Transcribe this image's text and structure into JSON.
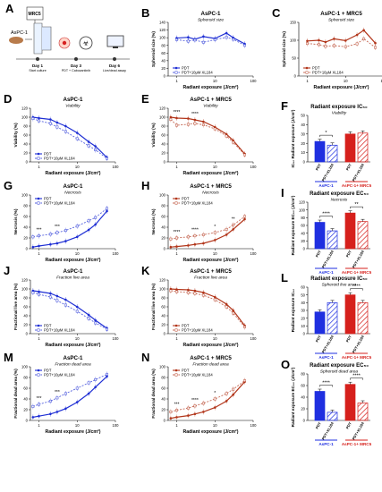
{
  "figure": {
    "panelA": {
      "letter": "A",
      "cells_label": "AsPC-1",
      "mrc5_label": "MRC5",
      "steps": [
        {
          "day": "Day 1",
          "note": "Start culture"
        },
        {
          "day": "Day 3",
          "note": "PDT + Cabozantinib"
        },
        {
          "day": "Day 6",
          "note": "Live/dead assay"
        }
      ]
    }
  },
  "colors": {
    "blue": "#1f2fd4",
    "red": "#b2361b",
    "bar_blue": "#1f2fe0",
    "bar_red": "#d6201c"
  },
  "chart_data": [
    {
      "id": "B",
      "type": "line",
      "title": "AsPC-1",
      "subtitle": "Spheroid size",
      "xlabel": "Radiant exposure (J/cm²)",
      "ylabel": "Spheroid size (%)",
      "xscale": "log",
      "xlim": [
        0.6,
        100
      ],
      "ylim": [
        0,
        140
      ],
      "yticks": [
        0,
        20,
        40,
        60,
        80,
        100,
        120,
        140
      ],
      "xticks": [
        1,
        10,
        100
      ],
      "color": "#1f2fd4",
      "legend_position": "bottom-left",
      "series": [
        {
          "name": "PDT",
          "style": "solid",
          "x": [
            1,
            2,
            3,
            5,
            10,
            20,
            30,
            60
          ],
          "y": [
            99,
            101,
            96,
            103,
            98,
            112,
            100,
            84
          ]
        },
        {
          "name": "PDT+10μM XL184",
          "style": "dashed",
          "x": [
            1,
            2,
            3,
            5,
            10,
            20,
            30,
            60
          ],
          "y": [
            95,
            91,
            94,
            88,
            95,
            101,
            96,
            80
          ]
        }
      ]
    },
    {
      "id": "C",
      "type": "line",
      "title": "AsPC-1 + MRC5",
      "subtitle": "Spheroid size",
      "xlabel": "Radiant exposure (J/cm²)",
      "ylabel": "Spheroid size (%)",
      "xscale": "log",
      "xlim": [
        0.6,
        100
      ],
      "ylim": [
        0,
        150
      ],
      "yticks": [
        0,
        50,
        100,
        150
      ],
      "xticks": [
        1,
        10,
        100
      ],
      "color": "#b2361b",
      "legend_position": "bottom-left",
      "series": [
        {
          "name": "PDT",
          "style": "solid",
          "x": [
            1,
            2,
            3,
            5,
            10,
            20,
            30,
            60
          ],
          "y": [
            98,
            100,
            95,
            104,
            99,
            115,
            128,
            92
          ]
        },
        {
          "name": "PDT+10μM XL184",
          "style": "dashed",
          "x": [
            1,
            2,
            3,
            5,
            10,
            20,
            30,
            60
          ],
          "y": [
            91,
            88,
            83,
            85,
            82,
            90,
            104,
            80
          ]
        }
      ]
    },
    {
      "id": "D",
      "type": "line",
      "title": "AsPC-1",
      "subtitle": "Viability",
      "xlabel": "Radiant exposure (J/cm²)",
      "ylabel": "Viability (%)",
      "xscale": "log",
      "xlim": [
        0.6,
        100
      ],
      "ylim": [
        0,
        120
      ],
      "yticks": [
        0,
        20,
        40,
        60,
        80,
        100,
        120
      ],
      "xticks": [
        1,
        10,
        100
      ],
      "color": "#1f2fd4",
      "legend_position": "bottom-left",
      "series": [
        {
          "name": "PDT",
          "style": "solid",
          "x": [
            0.7,
            1,
            2,
            3,
            5,
            10,
            20,
            30,
            60
          ],
          "y": [
            100,
            98,
            95,
            88,
            80,
            65,
            45,
            35,
            10
          ]
        },
        {
          "name": "PDT+10μM XL184",
          "style": "dashed",
          "x": [
            0.7,
            1,
            2,
            3,
            5,
            10,
            20,
            30,
            60
          ],
          "y": [
            97,
            92,
            86,
            78,
            68,
            52,
            36,
            27,
            8
          ]
        }
      ]
    },
    {
      "id": "E",
      "type": "line",
      "title": "AsPC-1 + MRC5",
      "subtitle": "Viability",
      "xlabel": "Radiant exposure (J/cm²)",
      "ylabel": "Viability (%)",
      "xscale": "log",
      "xlim": [
        0.6,
        100
      ],
      "ylim": [
        0,
        120
      ],
      "yticks": [
        0,
        20,
        40,
        60,
        80,
        100,
        120
      ],
      "xticks": [
        1,
        10,
        100
      ],
      "color": "#b2361b",
      "annotations": [
        "****",
        "****"
      ],
      "series": [
        {
          "name": "PDT",
          "style": "solid",
          "x": [
            0.7,
            1,
            2,
            3,
            5,
            10,
            20,
            30,
            60
          ],
          "y": [
            100,
            98,
            97,
            94,
            90,
            78,
            62,
            48,
            18
          ]
        },
        {
          "name": "PDT+10μM XL184",
          "style": "dashed",
          "x": [
            0.7,
            1,
            2,
            3,
            5,
            10,
            20,
            30,
            60
          ],
          "y": [
            95,
            82,
            84,
            86,
            83,
            74,
            58,
            44,
            16
          ]
        }
      ]
    },
    {
      "id": "F",
      "type": "bar",
      "title": "Radiant exposure IC₅₀",
      "subtitle": "Viability",
      "ylabel": "IC₅₀ Radiant exposure (J/cm²)",
      "ylim": [
        0,
        50
      ],
      "yticks": [
        0,
        10,
        20,
        30,
        40,
        50
      ],
      "annotations": [
        "*"
      ],
      "categories": [
        "PDT",
        "PDT+XL184",
        "PDT",
        "PDT+XL184"
      ],
      "groups": [
        "AsPC-1",
        "AsPC-1+ MRC5"
      ],
      "values": [
        22,
        18,
        30,
        31
      ]
    },
    {
      "id": "G",
      "type": "line",
      "title": "AsPC-1",
      "subtitle": "Necrosis",
      "xlabel": "Radiant exposure (J/cm²)",
      "ylabel": "Necrosis (%)",
      "xscale": "log",
      "xlim": [
        0.6,
        100
      ],
      "ylim": [
        0,
        100
      ],
      "yticks": [
        0,
        20,
        40,
        60,
        80,
        100
      ],
      "xticks": [
        1,
        10,
        100
      ],
      "color": "#1f2fd4",
      "legend_position": "top-left",
      "annotations": [
        "***",
        "***"
      ],
      "series": [
        {
          "name": "PDT",
          "style": "solid",
          "x": [
            0.7,
            1,
            2,
            3,
            5,
            10,
            20,
            30,
            60
          ],
          "y": [
            3,
            5,
            8,
            10,
            14,
            22,
            35,
            45,
            70
          ]
        },
        {
          "name": "PDT+10μM XL184",
          "style": "dashed",
          "x": [
            0.7,
            1,
            2,
            3,
            5,
            10,
            20,
            30,
            60
          ],
          "y": [
            22,
            24,
            27,
            30,
            34,
            42,
            52,
            58,
            75
          ]
        }
      ]
    },
    {
      "id": "H",
      "type": "line",
      "title": "AsPC-1 + MRC5",
      "subtitle": "Necrosis",
      "xlabel": "Radiant exposure (J/cm²)",
      "ylabel": "Necrosis (%)",
      "xscale": "log",
      "xlim": [
        0.6,
        100
      ],
      "ylim": [
        0,
        100
      ],
      "yticks": [
        0,
        20,
        40,
        60,
        80,
        100
      ],
      "xticks": [
        1,
        10,
        100
      ],
      "color": "#b2361b",
      "legend_position": "top-left",
      "annotations": [
        "****",
        "****",
        "*",
        "**"
      ],
      "series": [
        {
          "name": "PDT",
          "style": "solid",
          "x": [
            0.7,
            1,
            2,
            3,
            5,
            10,
            20,
            30,
            60
          ],
          "y": [
            3,
            4,
            6,
            8,
            10,
            16,
            26,
            36,
            55
          ]
        },
        {
          "name": "PDT+10μM XL184",
          "style": "dashed",
          "x": [
            0.7,
            1,
            2,
            3,
            5,
            10,
            20,
            30,
            60
          ],
          "y": [
            18,
            20,
            22,
            24,
            26,
            30,
            36,
            44,
            60
          ]
        }
      ]
    },
    {
      "id": "I",
      "type": "bar",
      "title": "Radiant exposure EC₅₀",
      "subtitle": "Necrosis",
      "ylabel": "Radiant exposure EC₅₀ (J/cm²)",
      "ylim": [
        0,
        120
      ],
      "yticks": [
        0,
        20,
        40,
        60,
        80,
        100,
        120
      ],
      "annotations": [
        "****",
        "**"
      ],
      "categories": [
        "PDT",
        "PDT+XL184",
        "PDT",
        "PDT+XL184"
      ],
      "groups": [
        "AsPC-1",
        "AsPC-1+ MRC5"
      ],
      "values": [
        68,
        46,
        92,
        70
      ]
    },
    {
      "id": "J",
      "type": "line",
      "title": "AsPC-1",
      "subtitle": "Fraction live area",
      "xlabel": "Radiant exposure (J/cm²)",
      "ylabel": "Fractional live area (%)",
      "xscale": "log",
      "xlim": [
        0.6,
        100
      ],
      "ylim": [
        0,
        120
      ],
      "yticks": [
        0,
        20,
        40,
        60,
        80,
        100,
        120
      ],
      "xticks": [
        1,
        10,
        100
      ],
      "color": "#1f2fd4",
      "legend_position": "bottom-left",
      "series": [
        {
          "name": "PDT",
          "style": "solid",
          "x": [
            0.7,
            1,
            2,
            3,
            5,
            10,
            20,
            30,
            60
          ],
          "y": [
            96,
            94,
            90,
            84,
            76,
            60,
            42,
            30,
            12
          ]
        },
        {
          "name": "PDT+10μM XL184",
          "style": "dashed",
          "x": [
            0.7,
            1,
            2,
            3,
            5,
            10,
            20,
            30,
            60
          ],
          "y": [
            92,
            88,
            82,
            74,
            64,
            50,
            34,
            24,
            10
          ]
        }
      ]
    },
    {
      "id": "K",
      "type": "line",
      "title": "AsPC-1 + MRC5",
      "subtitle": "Fraction live area",
      "xlabel": "Radiant exposure (J/cm²)",
      "ylabel": "Fractional live area (%)",
      "xscale": "log",
      "xlim": [
        0.6,
        100
      ],
      "ylim": [
        0,
        120
      ],
      "yticks": [
        0,
        20,
        40,
        60,
        80,
        100,
        120
      ],
      "xticks": [
        1,
        10,
        100
      ],
      "color": "#b2361b",
      "legend_position": "bottom-left",
      "series": [
        {
          "name": "PDT",
          "style": "solid",
          "x": [
            0.7,
            1,
            2,
            3,
            5,
            10,
            20,
            30,
            60
          ],
          "y": [
            100,
            99,
            98,
            96,
            92,
            82,
            66,
            52,
            18
          ]
        },
        {
          "name": "PDT+10μM XL184",
          "style": "dashed",
          "x": [
            0.7,
            1,
            2,
            3,
            5,
            10,
            20,
            30,
            60
          ],
          "y": [
            96,
            94,
            92,
            90,
            86,
            76,
            60,
            46,
            15
          ]
        }
      ]
    },
    {
      "id": "L",
      "type": "bar",
      "title": "Radiant exposure IC₅₀",
      "subtitle": "Spheroid live area",
      "ylabel": "Radiant exposure IC₅₀",
      "ylim": [
        0,
        60
      ],
      "yticks": [
        0,
        10,
        20,
        30,
        40,
        50,
        60
      ],
      "annotations": [
        "****"
      ],
      "categories": [
        "PDT",
        "PDT+XL184",
        "PDT",
        "PDT+XL184"
      ],
      "groups": [
        "AsPC-1",
        "AsPC-1+ MRC5"
      ],
      "values": [
        28,
        40,
        50,
        40
      ]
    },
    {
      "id": "M",
      "type": "line",
      "title": "AsPC-1",
      "subtitle": "Fraction dead area",
      "xlabel": "Radiant exposure (J/cm²)",
      "ylabel": "Fractional dead area (%)",
      "xscale": "log",
      "xlim": [
        0.6,
        100
      ],
      "ylim": [
        0,
        100
      ],
      "yticks": [
        0,
        20,
        40,
        60,
        80,
        100
      ],
      "xticks": [
        1,
        10,
        100
      ],
      "color": "#1f2fd4",
      "legend_position": "top-left",
      "annotations": [
        "***",
        "***"
      ],
      "series": [
        {
          "name": "PDT",
          "style": "solid",
          "x": [
            0.7,
            1,
            2,
            3,
            5,
            10,
            20,
            30,
            60
          ],
          "y": [
            6,
            8,
            12,
            16,
            22,
            34,
            50,
            62,
            82
          ]
        },
        {
          "name": "PDT+10μM XL184",
          "style": "dashed",
          "x": [
            0.7,
            1,
            2,
            3,
            5,
            10,
            20,
            30,
            60
          ],
          "y": [
            26,
            30,
            36,
            42,
            50,
            60,
            70,
            76,
            86
          ]
        }
      ]
    },
    {
      "id": "N",
      "type": "line",
      "title": "AsPC-1 + MRC5",
      "subtitle": "Fraction dead area",
      "xlabel": "Radiant exposure (J/cm²)",
      "ylabel": "Fractional dead area (%)",
      "xscale": "log",
      "xlim": [
        0.6,
        100
      ],
      "ylim": [
        0,
        100
      ],
      "yticks": [
        0,
        20,
        40,
        60,
        80,
        100
      ],
      "xticks": [
        1,
        10,
        100
      ],
      "color": "#b2361b",
      "legend_position": "top-left",
      "annotations": [
        "***",
        "****",
        "*"
      ],
      "series": [
        {
          "name": "PDT",
          "style": "solid",
          "x": [
            0.7,
            1,
            2,
            3,
            5,
            10,
            20,
            30,
            60
          ],
          "y": [
            4,
            6,
            9,
            12,
            16,
            24,
            36,
            48,
            72
          ]
        },
        {
          "name": "PDT+10μM XL184",
          "style": "dashed",
          "x": [
            0.7,
            1,
            2,
            3,
            5,
            10,
            20,
            30,
            60
          ],
          "y": [
            16,
            19,
            23,
            27,
            32,
            40,
            50,
            58,
            74
          ]
        }
      ]
    },
    {
      "id": "O",
      "type": "bar",
      "title": "Radiant exposure EC₅₀",
      "subtitle": "Spheroid dead area",
      "ylabel": "Radiant exposure EC₅₀ (J/cm²)",
      "ylim": [
        0,
        80
      ],
      "yticks": [
        0,
        20,
        40,
        60,
        80
      ],
      "annotations": [
        "****",
        "****"
      ],
      "categories": [
        "PDT",
        "PDT+XL184",
        "PDT",
        "PDT+XL184"
      ],
      "groups": [
        "AsPC-1",
        "AsPC-1+ MRC5"
      ],
      "values": [
        50,
        14,
        62,
        30
      ]
    }
  ]
}
